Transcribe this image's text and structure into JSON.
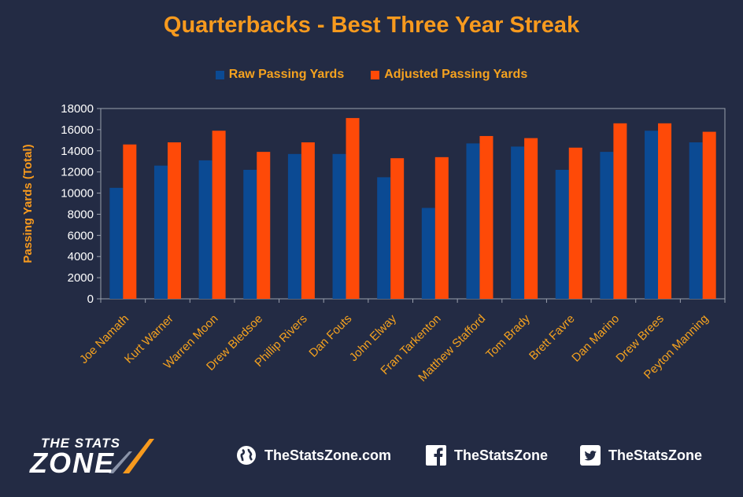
{
  "chart_data": {
    "type": "bar",
    "title": "Quarterbacks - Best Three Year Streak",
    "ylabel": "Passing Yards (Total)",
    "xlabel": "",
    "ylim": [
      0,
      18000
    ],
    "yticks": [
      0,
      2000,
      4000,
      6000,
      8000,
      10000,
      12000,
      14000,
      16000,
      18000
    ],
    "legend_position": "top",
    "grid": false,
    "categories": [
      "Joe Namath",
      "Kurt Warner",
      "Warren Moon",
      "Drew Bledsoe",
      "Phillip Rivers",
      "Dan Fouts",
      "John Elway",
      "Fran Tarkenton",
      "Matthew Stafford",
      "Tom Brady",
      "Brett Favre",
      "Dan Marino",
      "Drew Brees",
      "Peyton Manning"
    ],
    "series": [
      {
        "name": "Raw Passing Yards",
        "color": "#0b4a93",
        "values": [
          10500,
          12600,
          13100,
          12200,
          13700,
          13700,
          11500,
          8600,
          14700,
          14400,
          12200,
          13900,
          15900,
          14800
        ]
      },
      {
        "name": "Adjusted Passing Yards",
        "color": "#fe4a08",
        "values": [
          14600,
          14800,
          15900,
          13900,
          14800,
          17100,
          13300,
          13400,
          15400,
          15200,
          14300,
          16600,
          16600,
          15800
        ]
      }
    ]
  },
  "footer": {
    "logo_text_top": "THE STATS",
    "logo_text_bottom": "ZONE",
    "website": "TheStatsZone.com",
    "facebook": "TheStatsZone",
    "twitter": "TheStatsZone",
    "icons": [
      "globe-icon",
      "facebook-icon",
      "twitter-icon"
    ]
  },
  "colors": {
    "background": "#232b44",
    "title": "#f79a1e",
    "axis_text": "#ffffff",
    "category_text": "#f5a21f"
  }
}
